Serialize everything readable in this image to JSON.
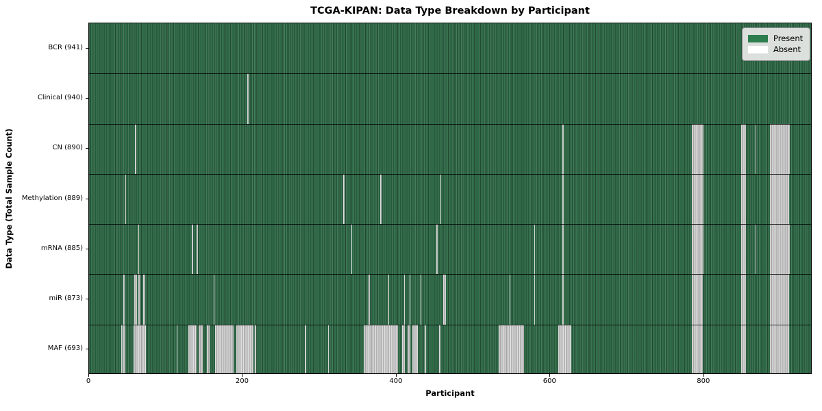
{
  "figure": {
    "title": "TCGA-KIPAN: Data Type Breakdown by Participant",
    "xlabel": "Participant",
    "ylabel": "Data Type (Total Sample Count)"
  },
  "chart_data": {
    "type": "heatmap",
    "title": "TCGA-KIPAN: Data Type Breakdown by Participant",
    "xlabel": "Participant",
    "ylabel": "Data Type (Total Sample Count)",
    "n_participants": 941,
    "xlim": [
      0,
      941
    ],
    "x_ticks": [
      0,
      200,
      400,
      600,
      800
    ],
    "legend_position": "upper right",
    "grid": "horizontal row separators only",
    "cell_encoding": "green = data present for participant, white/gray = absent",
    "legend": [
      {
        "label": "Present",
        "color": "#2e7d4f"
      },
      {
        "label": "Absent",
        "color": "#ffffff"
      }
    ],
    "colors": {
      "present_base": "#2d6a46",
      "absent_base": "#bfbfbf",
      "separator": "#000000",
      "legend_bg": "#eaeaea"
    },
    "rows": [
      {
        "label": "BCR (941)",
        "data_type": "BCR",
        "present_count": 941,
        "absent_ranges": []
      },
      {
        "label": "Clinical (940)",
        "data_type": "Clinical",
        "present_count": 940,
        "absent_ranges": [
          [
            206,
            207
          ]
        ]
      },
      {
        "label": "CN (890)",
        "data_type": "CN",
        "present_count": 890,
        "absent_ranges": [
          [
            60,
            61
          ],
          [
            616,
            617
          ],
          [
            784,
            799
          ],
          [
            848,
            855
          ],
          [
            867,
            868
          ],
          [
            886,
            912
          ]
        ]
      },
      {
        "label": "Methylation (889)",
        "data_type": "Methylation",
        "present_count": 889,
        "absent_ranges": [
          [
            47,
            48
          ],
          [
            331,
            332
          ],
          [
            379,
            380
          ],
          [
            457,
            458
          ],
          [
            616,
            617
          ],
          [
            784,
            799
          ],
          [
            848,
            855
          ],
          [
            886,
            911
          ]
        ]
      },
      {
        "label": "mRNA (885)",
        "data_type": "mRNA",
        "present_count": 885,
        "absent_ranges": [
          [
            64,
            65
          ],
          [
            134,
            135
          ],
          [
            140,
            141
          ],
          [
            341,
            342
          ],
          [
            452,
            453
          ],
          [
            579,
            580
          ],
          [
            616,
            617
          ],
          [
            784,
            799
          ],
          [
            848,
            855
          ],
          [
            867,
            868
          ],
          [
            886,
            912
          ]
        ]
      },
      {
        "label": "miR (873)",
        "data_type": "miR",
        "present_count": 873,
        "absent_ranges": [
          [
            45,
            46
          ],
          [
            59,
            62
          ],
          [
            64,
            67
          ],
          [
            70,
            73
          ],
          [
            162,
            163
          ],
          [
            364,
            365
          ],
          [
            389,
            390
          ],
          [
            410,
            411
          ],
          [
            417,
            418
          ],
          [
            431,
            432
          ],
          [
            461,
            464
          ],
          [
            547,
            548
          ],
          [
            579,
            580
          ],
          [
            616,
            617
          ],
          [
            784,
            798
          ],
          [
            848,
            855
          ],
          [
            886,
            911
          ]
        ]
      },
      {
        "label": "MAF (693)",
        "data_type": "MAF",
        "present_count": 693,
        "absent_ranges": [
          [
            42,
            43
          ],
          [
            45,
            47
          ],
          [
            58,
            74
          ],
          [
            114,
            115
          ],
          [
            129,
            140
          ],
          [
            143,
            148
          ],
          [
            153,
            157
          ],
          [
            164,
            188
          ],
          [
            192,
            214
          ],
          [
            216,
            217
          ],
          [
            281,
            282
          ],
          [
            311,
            312
          ],
          [
            357,
            402
          ],
          [
            407,
            411
          ],
          [
            414,
            418
          ],
          [
            421,
            428
          ],
          [
            437,
            438
          ],
          [
            455,
            457
          ],
          [
            533,
            566
          ],
          [
            610,
            627
          ],
          [
            784,
            798
          ],
          [
            848,
            855
          ],
          [
            886,
            911
          ]
        ]
      }
    ]
  }
}
